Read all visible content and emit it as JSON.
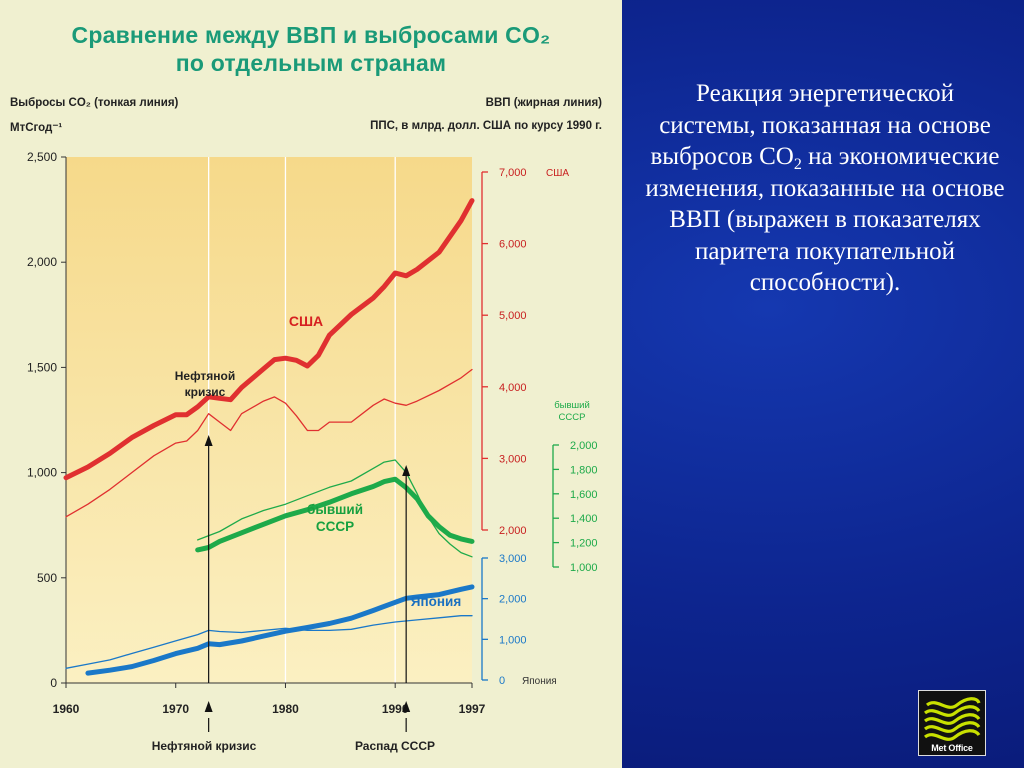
{
  "figure": {
    "title_line1": "Сравнение между ВВП и выбросами CO₂",
    "title_line2": "по отдельным странам",
    "left_header_line1": "Выбросы CO₂ (тонкая линия)",
    "left_header_line2": "МтСгод⁻¹",
    "right_header_line1": "ВВП (жирная линия)",
    "right_header_line2": "ППС, в млрд. долл. США по курсу 1990 г."
  },
  "side_text": {
    "part1": "Реакция энергетической системы, показанная на основе выбросов CO",
    "sub": "2",
    "part2": " на экономические изменения, показанные на основе ВВП (выражен в показателях паритета покупательной способности)."
  },
  "logo": {
    "label": "Met Office",
    "icon": "met-office-waves-icon"
  },
  "colors": {
    "usa": "#e03030",
    "ussr": "#1eaa4a",
    "japan": "#1a78c8",
    "plot_top": "#f6d98a",
    "plot_bottom": "#fbf0c2",
    "figure_bg": "#f0f0d0",
    "slide_bg": "#0d258f"
  },
  "chart_data": {
    "type": "line",
    "x_ticks": [
      "1960",
      "1970",
      "1980",
      "1990",
      "1997"
    ],
    "x_range": [
      1960,
      1997
    ],
    "left_axis": {
      "label": "Выбросы CO₂ (тонкая линия) МтСгод⁻¹",
      "range": [
        0,
        2500
      ],
      "ticks": [
        "0",
        "500",
        "1,000",
        "1,500",
        "2,000",
        "2,500"
      ]
    },
    "right_axes": [
      {
        "name": "США",
        "range": [
          2000,
          7000
        ],
        "ticks": [
          "2,000",
          "3,000",
          "4,000",
          "5,000",
          "6,000",
          "7,000"
        ],
        "tick_values": [
          2000,
          3000,
          4000,
          5000,
          6000,
          7000
        ],
        "label": "США"
      },
      {
        "name": "бывший СССР",
        "range": [
          1000,
          2000
        ],
        "ticks": [
          "1,000",
          "1,200",
          "1,400",
          "1,600",
          "1,800",
          "2,000"
        ],
        "tick_values": [
          1000,
          1200,
          1400,
          1600,
          1800,
          2000
        ],
        "label": "бывший СССР"
      },
      {
        "name": "Япония",
        "range": [
          0,
          3000
        ],
        "ticks": [
          "0",
          "1,000",
          "2,000",
          "3,000"
        ],
        "tick_values": [
          0,
          1000,
          2000,
          3000
        ],
        "label": "Япония"
      }
    ],
    "gridlines_x": [
      1973,
      1980,
      1990
    ],
    "series": [
      {
        "name": "США",
        "kind": "ВВП",
        "axis": "США",
        "weight": "thick",
        "x": [
          1960,
          1962,
          1964,
          1966,
          1968,
          1970,
          1971,
          1972,
          1973,
          1974,
          1975,
          1976,
          1978,
          1979,
          1980,
          1981,
          1982,
          1983,
          1984,
          1986,
          1988,
          1989,
          1990,
          1991,
          1992,
          1994,
          1996,
          1997
        ],
        "y": [
          2730,
          2880,
          3070,
          3290,
          3460,
          3610,
          3610,
          3720,
          3860,
          3840,
          3820,
          3990,
          4250,
          4380,
          4400,
          4370,
          4290,
          4440,
          4720,
          5010,
          5240,
          5400,
          5590,
          5550,
          5640,
          5880,
          6320,
          6600
        ]
      },
      {
        "name": "США",
        "kind": "CO₂",
        "axis": "left",
        "weight": "thin",
        "x": [
          1960,
          1962,
          1964,
          1966,
          1968,
          1970,
          1971,
          1972,
          1973,
          1974,
          1975,
          1976,
          1978,
          1979,
          1980,
          1981,
          1982,
          1983,
          1984,
          1986,
          1988,
          1989,
          1990,
          1991,
          1992,
          1994,
          1996,
          1997
        ],
        "y": [
          790,
          850,
          920,
          1000,
          1080,
          1140,
          1150,
          1200,
          1280,
          1240,
          1200,
          1280,
          1340,
          1360,
          1330,
          1270,
          1200,
          1200,
          1240,
          1240,
          1320,
          1350,
          1330,
          1320,
          1340,
          1390,
          1450,
          1490
        ]
      },
      {
        "name": "бывший СССР",
        "kind": "ВВП",
        "axis": "бывший СССР",
        "weight": "thick",
        "x": [
          1972,
          1973,
          1974,
          1976,
          1978,
          1980,
          1982,
          1984,
          1986,
          1988,
          1989,
          1990,
          1991,
          1992,
          1993,
          1994,
          1995,
          1996,
          1997
        ],
        "y": [
          1140,
          1160,
          1210,
          1280,
          1350,
          1420,
          1470,
          1530,
          1600,
          1660,
          1700,
          1720,
          1650,
          1560,
          1420,
          1330,
          1260,
          1230,
          1210
        ]
      },
      {
        "name": "бывший СССР",
        "kind": "CO₂",
        "axis": "left",
        "weight": "thin",
        "x": [
          1972,
          1974,
          1976,
          1978,
          1980,
          1982,
          1984,
          1986,
          1988,
          1989,
          1990,
          1991,
          1992,
          1993,
          1994,
          1995,
          1996,
          1997
        ],
        "y": [
          680,
          720,
          780,
          820,
          850,
          890,
          930,
          960,
          1020,
          1050,
          1060,
          1000,
          900,
          790,
          710,
          660,
          620,
          600
        ]
      },
      {
        "name": "Япония",
        "kind": "ВВП",
        "axis": "Япония",
        "weight": "thick",
        "x": [
          1962,
          1964,
          1966,
          1968,
          1970,
          1972,
          1973,
          1974,
          1976,
          1978,
          1980,
          1982,
          1984,
          1986,
          1988,
          1990,
          1991,
          1992,
          1994,
          1996,
          1997
        ],
        "y": [
          170,
          240,
          330,
          480,
          650,
          780,
          890,
          870,
          960,
          1080,
          1200,
          1290,
          1390,
          1520,
          1710,
          1910,
          2010,
          2040,
          2100,
          2230,
          2290
        ]
      },
      {
        "name": "Япония",
        "kind": "CO₂",
        "axis": "left",
        "weight": "thin",
        "x": [
          1960,
          1962,
          1964,
          1966,
          1968,
          1970,
          1972,
          1973,
          1974,
          1976,
          1978,
          1980,
          1982,
          1984,
          1986,
          1988,
          1990,
          1992,
          1994,
          1996,
          1997
        ],
        "y": [
          70,
          90,
          110,
          140,
          170,
          200,
          230,
          250,
          245,
          240,
          250,
          260,
          250,
          250,
          255,
          275,
          290,
          300,
          310,
          320,
          320
        ]
      }
    ],
    "series_labels": {
      "usa": "США",
      "ussr_line1": "бывший",
      "ussr_line2": "СССР",
      "japan": "Япония"
    },
    "annotations": {
      "oil_crisis_top_line1": "Нефтяной",
      "oil_crisis_top_line2": "кризис",
      "oil_crisis_bottom": "Нефтяной кризис",
      "ussr_collapse": "Распад СССР",
      "oil_crisis_year": 1973,
      "ussr_collapse_year": 1991
    },
    "legend": "none",
    "grid": "vertical lines only"
  }
}
